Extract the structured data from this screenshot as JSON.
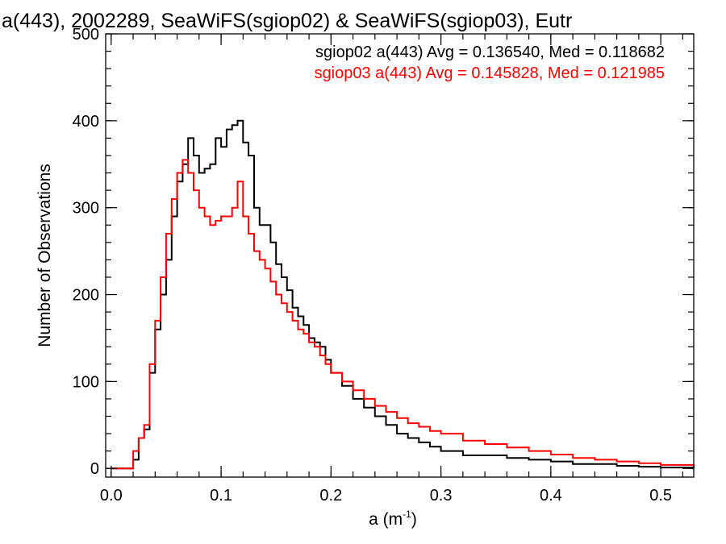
{
  "chart_data": {
    "type": "line",
    "title": "a(443), 2002289, SeaWiFS(sgiop02) & SeaWiFS(sgiop03), Eutr",
    "xlabel": "a (m",
    "xlabel_sup": "-1",
    "xlabel_close": ")",
    "ylabel": "Number of Observations",
    "xlim": [
      -0.005,
      0.53
    ],
    "ylim": [
      -10,
      500
    ],
    "xticks": [
      0.0,
      0.1,
      0.2,
      0.3,
      0.4,
      0.5
    ],
    "xtick_labels": [
      "0.0",
      "0.1",
      "0.2",
      "0.3",
      "0.4",
      "0.5"
    ],
    "yticks": [
      0,
      100,
      200,
      300,
      400,
      500
    ],
    "ytick_labels": [
      "0",
      "100",
      "200",
      "300",
      "400",
      "500"
    ],
    "legend_position": "top-right",
    "series": [
      {
        "name": "sgiop02",
        "legend": "sgiop02 a(443) Avg = 0.136540, Med = 0.118682",
        "color": "#000000",
        "x": [
          0.0,
          0.01,
          0.015,
          0.02,
          0.025,
          0.03,
          0.035,
          0.04,
          0.045,
          0.05,
          0.055,
          0.06,
          0.065,
          0.07,
          0.075,
          0.08,
          0.085,
          0.09,
          0.095,
          0.1,
          0.105,
          0.11,
          0.115,
          0.12,
          0.125,
          0.13,
          0.135,
          0.14,
          0.145,
          0.15,
          0.155,
          0.16,
          0.165,
          0.17,
          0.175,
          0.18,
          0.185,
          0.19,
          0.195,
          0.2,
          0.21,
          0.22,
          0.23,
          0.24,
          0.25,
          0.26,
          0.27,
          0.28,
          0.29,
          0.3,
          0.32,
          0.34,
          0.36,
          0.38,
          0.4,
          0.42,
          0.44,
          0.46,
          0.48,
          0.5,
          0.53
        ],
        "y": [
          0,
          0,
          0,
          10,
          35,
          45,
          110,
          160,
          200,
          240,
          290,
          330,
          350,
          380,
          360,
          340,
          345,
          350,
          380,
          370,
          390,
          395,
          400,
          375,
          360,
          300,
          280,
          280,
          260,
          235,
          220,
          205,
          185,
          175,
          165,
          150,
          145,
          140,
          125,
          110,
          95,
          80,
          70,
          60,
          50,
          40,
          35,
          30,
          25,
          20,
          15,
          15,
          12,
          10,
          8,
          5,
          5,
          3,
          2,
          1,
          0
        ]
      },
      {
        "name": "sgiop03",
        "legend": "sgiop03 a(443) Avg = 0.145828, Med = 0.121985",
        "color": "#ff0000",
        "x": [
          0.0,
          0.01,
          0.015,
          0.02,
          0.025,
          0.03,
          0.035,
          0.04,
          0.045,
          0.05,
          0.055,
          0.06,
          0.065,
          0.07,
          0.075,
          0.08,
          0.085,
          0.09,
          0.095,
          0.1,
          0.105,
          0.11,
          0.115,
          0.12,
          0.125,
          0.13,
          0.135,
          0.14,
          0.145,
          0.15,
          0.155,
          0.16,
          0.165,
          0.17,
          0.175,
          0.18,
          0.185,
          0.19,
          0.195,
          0.2,
          0.21,
          0.22,
          0.23,
          0.24,
          0.25,
          0.26,
          0.27,
          0.28,
          0.29,
          0.3,
          0.32,
          0.34,
          0.36,
          0.38,
          0.4,
          0.42,
          0.44,
          0.46,
          0.48,
          0.5,
          0.53
        ],
        "y": [
          0,
          0,
          0,
          20,
          35,
          50,
          120,
          170,
          220,
          270,
          310,
          340,
          355,
          340,
          320,
          300,
          290,
          280,
          285,
          290,
          290,
          300,
          330,
          290,
          270,
          250,
          240,
          230,
          215,
          200,
          190,
          180,
          170,
          160,
          155,
          145,
          140,
          130,
          120,
          110,
          100,
          90,
          80,
          72,
          65,
          58,
          52,
          48,
          43,
          40,
          32,
          28,
          24,
          20,
          16,
          12,
          10,
          8,
          6,
          4,
          2
        ]
      }
    ]
  }
}
